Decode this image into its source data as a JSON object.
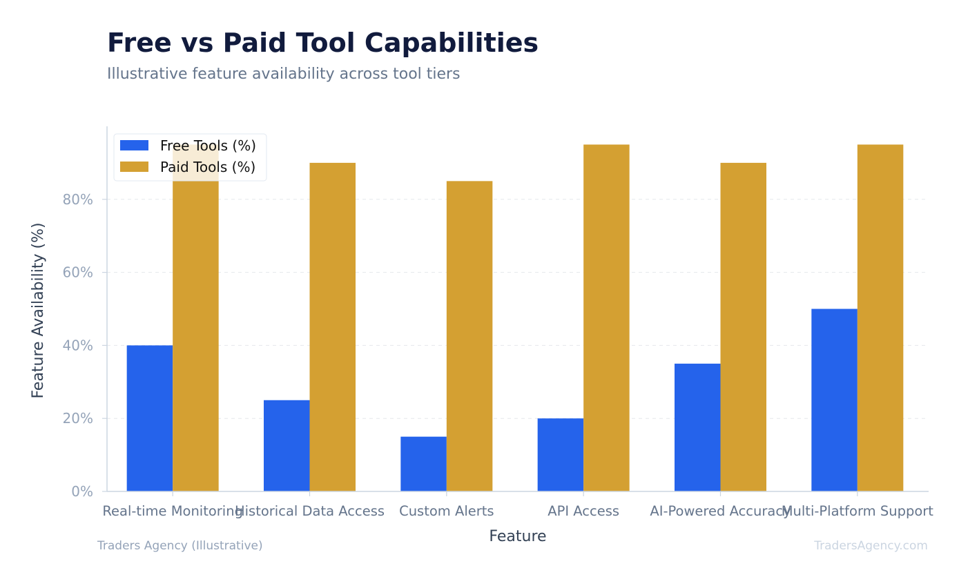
{
  "header": {
    "title": "Free vs Paid Tool Capabilities",
    "subtitle": "Illustrative feature availability across tool tiers"
  },
  "footer": {
    "source": "Traders Agency (Illustrative)",
    "watermark": "TradersAgency.com"
  },
  "colors": {
    "free": "#2563eb",
    "paid": "#d4a032",
    "grid": "#e5e7eb",
    "axis": "#cbd5e1"
  },
  "chart_data": {
    "type": "bar",
    "xlabel": "Feature",
    "ylabel": "Feature Availability (%)",
    "ylim": [
      0,
      100
    ],
    "y_ticks": [
      0,
      20,
      40,
      60,
      80
    ],
    "y_tick_labels": [
      "0%",
      "20%",
      "40%",
      "60%",
      "80%"
    ],
    "grid": true,
    "legend_position": "top-left",
    "categories": [
      "Real-time Monitoring",
      "Historical Data Access",
      "Custom Alerts",
      "API Access",
      "AI-Powered Accuracy",
      "Multi-Platform Support"
    ],
    "series": [
      {
        "name": "Free Tools (%)",
        "color_key": "free",
        "values": [
          40,
          25,
          15,
          20,
          35,
          50
        ]
      },
      {
        "name": "Paid Tools (%)",
        "color_key": "paid",
        "values": [
          95,
          90,
          85,
          95,
          90,
          95
        ]
      }
    ]
  }
}
